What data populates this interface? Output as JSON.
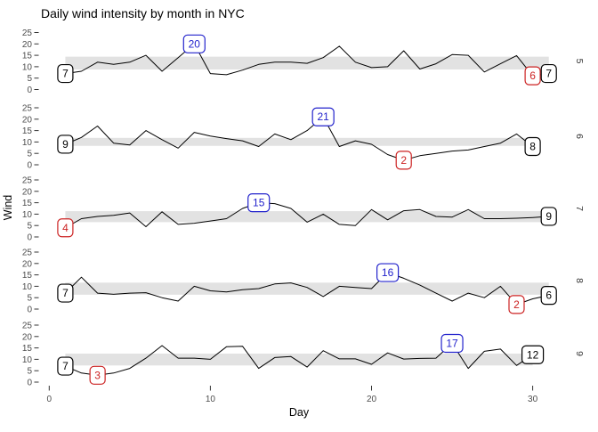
{
  "title": "Daily wind intensity by month in NYC",
  "axes": {
    "x_label": "Day",
    "y_label": "Wind",
    "x_ticks": [
      0,
      10,
      20,
      30
    ],
    "y_ticks": [
      25,
      20,
      15,
      10,
      5,
      0
    ]
  },
  "colors": {
    "line": "#000000",
    "band": "#E2E2E2",
    "max": "#2222CC",
    "min": "#CC2222",
    "endpoint": "#000000",
    "tick_text": "#4D4D4D",
    "strip_text": "#333333",
    "label_fill": "#FFFFFF"
  },
  "chart_data": {
    "type": "line",
    "facet_by": "month",
    "facet_side": "right",
    "x_field": "Day",
    "y_field": "Wind",
    "x_range": [
      0,
      31
    ],
    "y_range": [
      0,
      25
    ],
    "grid": false,
    "panels": [
      {
        "month": "5",
        "days": 31,
        "values": [
          7,
          8,
          12,
          11,
          12,
          15,
          8,
          14,
          20,
          7,
          6.5,
          8.5,
          11,
          12,
          12,
          11.5,
          14,
          19,
          12,
          9.6,
          10,
          17,
          9,
          11.3,
          15.3,
          15,
          7.7,
          11.3,
          14.9,
          6,
          7
        ],
        "band": {
          "lo": 8.8,
          "hi": 14.4
        },
        "labels": [
          {
            "day": 1,
            "text": "7",
            "role": "start"
          },
          {
            "day": 9,
            "text": "20",
            "role": "max"
          },
          {
            "day": 30,
            "text": "6",
            "role": "min"
          },
          {
            "day": 31,
            "text": "7",
            "role": "end"
          }
        ]
      },
      {
        "month": "6",
        "days": 30,
        "values": [
          9,
          12,
          17,
          9.5,
          8.7,
          15,
          11,
          7.3,
          14.2,
          12.6,
          11.5,
          10.5,
          8,
          13.5,
          11,
          15,
          21,
          8,
          10.5,
          9,
          4.5,
          2,
          4,
          5,
          6,
          6.5,
          8,
          9.5,
          13.5,
          8
        ],
        "band": {
          "lo": 8.3,
          "hi": 11.8
        },
        "labels": [
          {
            "day": 1,
            "text": "9",
            "role": "start"
          },
          {
            "day": 17,
            "text": "21",
            "role": "max"
          },
          {
            "day": 22,
            "text": "2",
            "role": "min"
          },
          {
            "day": 30,
            "text": "8",
            "role": "end"
          }
        ]
      },
      {
        "month": "7",
        "days": 31,
        "values": [
          4,
          8,
          9,
          9.5,
          10.5,
          4.5,
          11,
          5.5,
          6,
          7,
          8,
          12.5,
          15,
          14.6,
          12.5,
          6.5,
          10,
          5.5,
          5,
          12,
          7.5,
          11.5,
          12,
          9,
          8.7,
          12,
          8,
          8,
          8.2,
          8.5,
          9
        ],
        "band": {
          "lo": 6.5,
          "hi": 11.3
        },
        "labels": [
          {
            "day": 1,
            "text": "4",
            "role": "min"
          },
          {
            "day": 13,
            "text": "15",
            "role": "max"
          },
          {
            "day": 31,
            "text": "9",
            "role": "end"
          }
        ]
      },
      {
        "month": "8",
        "days": 31,
        "values": [
          7,
          14,
          7,
          6.5,
          7,
          7.2,
          5,
          3.5,
          10,
          8,
          7.5,
          8.5,
          9,
          11,
          11.5,
          9.5,
          5.5,
          10,
          9.5,
          9,
          16,
          13.5,
          10.5,
          7,
          3.5,
          7,
          5,
          10,
          2,
          4.5,
          6
        ],
        "band": {
          "lo": 6.3,
          "hi": 11.6
        },
        "labels": [
          {
            "day": 1,
            "text": "7",
            "role": "start"
          },
          {
            "day": 21,
            "text": "16",
            "role": "max"
          },
          {
            "day": 29,
            "text": "2",
            "role": "min"
          },
          {
            "day": 31,
            "text": "6",
            "role": "end"
          }
        ]
      },
      {
        "month": "9",
        "days": 30,
        "values": [
          7,
          4,
          3,
          4,
          6,
          10.5,
          16,
          10.5,
          10.5,
          10,
          15.5,
          15.7,
          6,
          10.8,
          11.2,
          6.6,
          13.8,
          10.2,
          10.2,
          7.8,
          12.8,
          10.1,
          10.4,
          10.5,
          17,
          6,
          13.5,
          14.5,
          7.3,
          12
        ],
        "band": {
          "lo": 7.3,
          "hi": 12.5
        },
        "labels": [
          {
            "day": 1,
            "text": "7",
            "role": "start"
          },
          {
            "day": 3,
            "text": "3",
            "role": "min"
          },
          {
            "day": 25,
            "text": "17",
            "role": "max"
          },
          {
            "day": 30,
            "text": "12",
            "role": "end"
          }
        ]
      }
    ]
  }
}
